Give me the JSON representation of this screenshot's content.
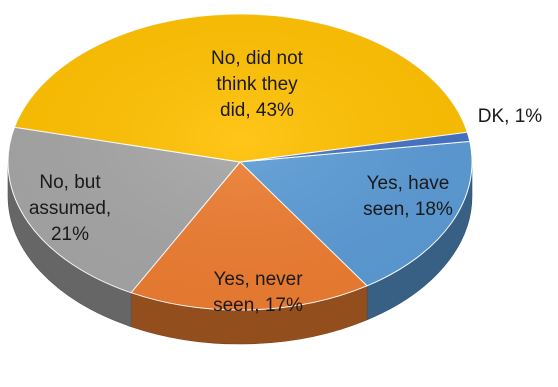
{
  "chart_data": {
    "type": "pie",
    "style": "3d",
    "slices": [
      {
        "label": "Yes, have seen",
        "value": 18,
        "color": "#5b9bd5",
        "label_lines": [
          "Yes, have",
          "seen, 18%"
        ]
      },
      {
        "label": "Yes, never seen",
        "value": 17,
        "color": "#ed7d31",
        "label_lines": [
          "Yes, never",
          "seen, 17%"
        ]
      },
      {
        "label": "No, but assumed",
        "value": 21,
        "color": "#a5a5a5",
        "label_lines": [
          "No, but",
          "assumed,",
          "21%"
        ]
      },
      {
        "label": "No, did not think they did",
        "value": 43,
        "color": "#ffc000",
        "label_lines": [
          "No, did not",
          "think they",
          "did, 43%"
        ]
      },
      {
        "label": "DK",
        "value": 1,
        "color": "#4472c4",
        "label_lines": [
          "DK, 1%"
        ]
      }
    ]
  }
}
